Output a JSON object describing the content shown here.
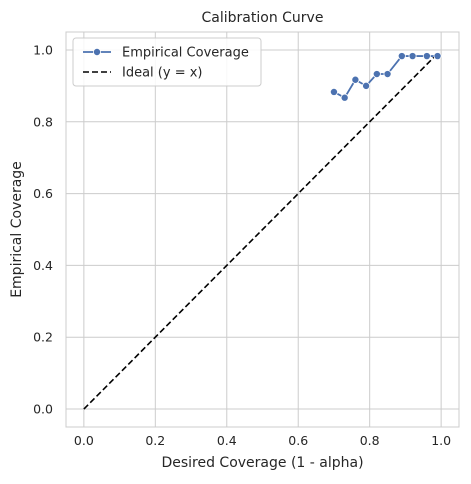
{
  "chart_data": {
    "type": "line",
    "title": "Calibration Curve",
    "xlabel": "Desired Coverage (1 - alpha)",
    "ylabel": "Empirical Coverage",
    "xlim": [
      -0.05,
      1.05
    ],
    "ylim": [
      -0.05,
      1.05
    ],
    "xticks": [
      "0.0",
      "0.2",
      "0.4",
      "0.6",
      "0.8",
      "1.0"
    ],
    "yticks": [
      "0.0",
      "0.2",
      "0.4",
      "0.6",
      "0.8",
      "1.0"
    ],
    "grid": true,
    "legend_position": "top-left",
    "series": [
      {
        "name": "Empirical Coverage",
        "color": "#4c72b0",
        "marker": "circle",
        "x": [
          0.7,
          0.73,
          0.76,
          0.79,
          0.82,
          0.85,
          0.89,
          0.92,
          0.96,
          0.99
        ],
        "y": [
          0.883,
          0.867,
          0.917,
          0.9,
          0.933,
          0.933,
          0.983,
          0.983,
          0.983,
          0.983
        ]
      },
      {
        "name": "Ideal (y = x)",
        "color": "#000000",
        "style": "dashed",
        "x": [
          0.0,
          0.99
        ],
        "y": [
          0.0,
          0.99
        ]
      }
    ]
  }
}
